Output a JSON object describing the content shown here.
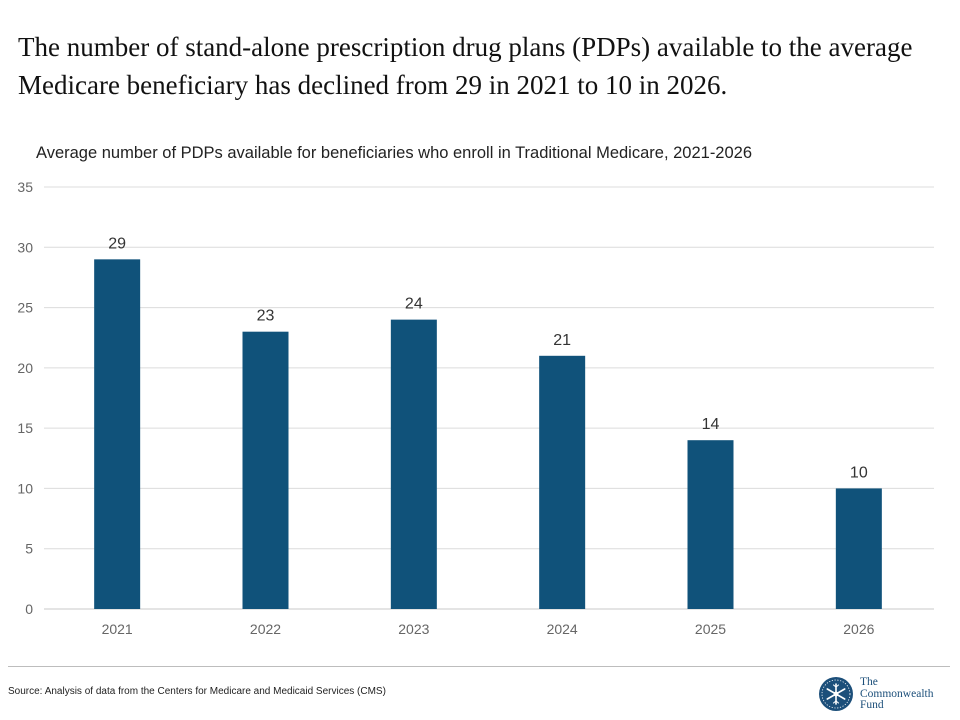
{
  "headline": "The number of stand-alone prescription drug plans (PDPs) available to the average Medicare beneficiary has declined from 29 in 2021 to 10 in 2026.",
  "colors": {
    "bar": "#10527a",
    "grid": "#dcdcdc",
    "tick": "#666666",
    "logo": "#1c4f7a"
  },
  "chart_data": {
    "type": "bar",
    "title": "Average number of PDPs available for beneficiaries who enroll in Traditional Medicare, 2021-2026",
    "xlabel": "",
    "ylabel": "",
    "categories": [
      "2021",
      "2022",
      "2023",
      "2024",
      "2025",
      "2026"
    ],
    "values": [
      29,
      23,
      24,
      21,
      14,
      10
    ],
    "data_labels": [
      "29",
      "23",
      "24",
      "21",
      "14",
      "10"
    ],
    "ylim": [
      0,
      35
    ],
    "yticks": [
      0,
      5,
      10,
      15,
      20,
      25,
      30,
      35
    ],
    "grid": true
  },
  "footer": {
    "source": "Source: Analysis of data from the Centers for Medicare and Medicaid Services (CMS)",
    "logo_lines": [
      "The",
      "Commonwealth",
      "Fund"
    ],
    "logo_icon": "snowflake-emblem-icon"
  }
}
